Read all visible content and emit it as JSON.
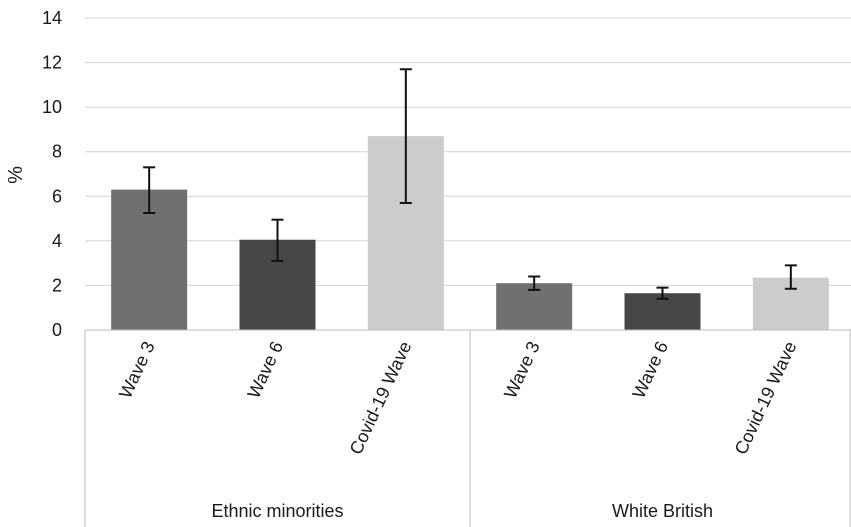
{
  "chart_data": {
    "type": "bar",
    "ylabel": "%",
    "ylim": [
      0,
      14
    ],
    "yticks": [
      0,
      2,
      4,
      6,
      8,
      10,
      12,
      14
    ],
    "grid": true,
    "groups": [
      {
        "name": "Ethnic minorities",
        "bars": [
          {
            "label": "Wave 3",
            "value": 6.3,
            "err_low": 5.25,
            "err_high": 7.3,
            "color": "#707070"
          },
          {
            "label": "Wave 6",
            "value": 4.05,
            "err_low": 3.1,
            "err_high": 4.95,
            "color": "#474747"
          },
          {
            "label": "Covid-19 Wave",
            "value": 8.7,
            "err_low": 5.7,
            "err_high": 11.7,
            "color": "#cccccc"
          }
        ]
      },
      {
        "name": "White British",
        "bars": [
          {
            "label": "Wave 3",
            "value": 2.1,
            "err_low": 1.8,
            "err_high": 2.4,
            "color": "#707070"
          },
          {
            "label": "Wave 6",
            "value": 1.65,
            "err_low": 1.4,
            "err_high": 1.9,
            "color": "#474747"
          },
          {
            "label": "Covid-19 Wave",
            "value": 2.35,
            "err_low": 1.85,
            "err_high": 2.9,
            "color": "#cccccc"
          }
        ]
      }
    ]
  }
}
